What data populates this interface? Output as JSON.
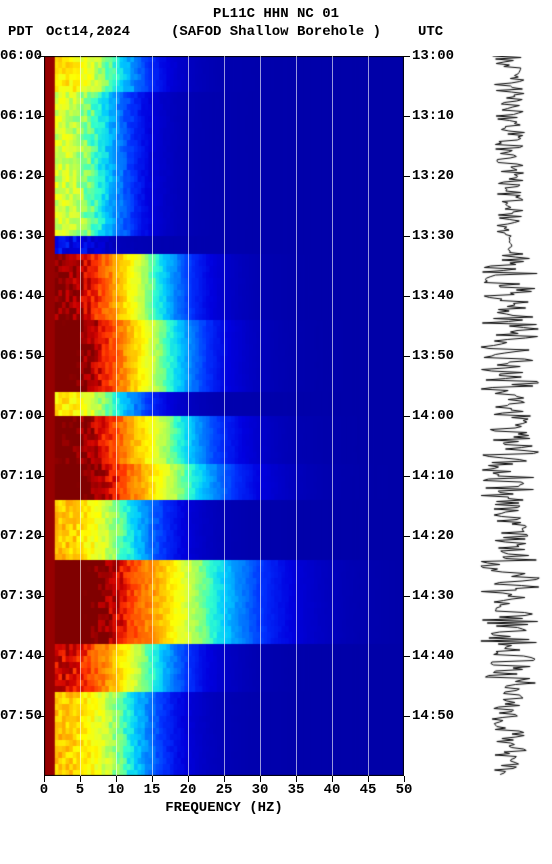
{
  "header": {
    "title": "PL11C HHN NC 01",
    "tz_left": "PDT",
    "date": "Oct14,2024",
    "subtitle": "(SAFOD Shallow Borehole )",
    "tz_right": "UTC",
    "title_fontsize": 14,
    "font_family": "Courier New"
  },
  "spectrogram": {
    "type": "spectrogram",
    "xlabel": "FREQUENCY (HZ)",
    "xlim": [
      0,
      50
    ],
    "xticks": [
      0,
      5,
      10,
      15,
      20,
      25,
      30,
      35,
      40,
      45,
      50
    ],
    "left_ticks": [
      "06:00",
      "06:10",
      "06:20",
      "06:30",
      "06:40",
      "06:50",
      "07:00",
      "07:10",
      "07:20",
      "07:30",
      "07:40",
      "07:50"
    ],
    "right_ticks": [
      "13:00",
      "13:10",
      "13:20",
      "13:30",
      "13:40",
      "13:50",
      "14:00",
      "14:10",
      "14:20",
      "14:30",
      "14:40",
      "14:50"
    ],
    "n_time_rows": 120,
    "ytick_step_minutes": 10,
    "grid_xvals": [
      5,
      10,
      15,
      20,
      25,
      30,
      35,
      40,
      45
    ],
    "grid_color": "#ffffff",
    "background_color": "#000099",
    "left_edge_color": "#800000",
    "colormap": [
      "#00008b",
      "#0000b3",
      "#0000e0",
      "#0033ff",
      "#0080ff",
      "#00ccff",
      "#33ffcc",
      "#99ff66",
      "#e0ff33",
      "#ffff00",
      "#ffcc00",
      "#ff9900",
      "#ff6600",
      "#ff3300",
      "#cc0000",
      "#800000"
    ],
    "events": [
      {
        "t0": 0,
        "t1": 6,
        "freq0": 0,
        "freq1": 12,
        "intensity": 0.55
      },
      {
        "t0": 6,
        "t1": 30,
        "freq0": 0,
        "freq1": 10,
        "intensity": 0.45
      },
      {
        "t0": 33,
        "t1": 44,
        "freq0": 0,
        "freq1": 16,
        "intensity": 0.92
      },
      {
        "t0": 44,
        "t1": 56,
        "freq0": 0,
        "freq1": 18,
        "intensity": 0.98
      },
      {
        "t0": 55,
        "t1": 60,
        "freq0": 0,
        "freq1": 12,
        "intensity": 0.55
      },
      {
        "t0": 60,
        "t1": 68,
        "freq0": 0,
        "freq1": 20,
        "intensity": 0.96
      },
      {
        "t0": 66,
        "t1": 74,
        "freq0": 0,
        "freq1": 22,
        "intensity": 0.99
      },
      {
        "t0": 74,
        "t1": 84,
        "freq0": 0,
        "freq1": 14,
        "intensity": 0.6
      },
      {
        "t0": 84,
        "t1": 98,
        "freq0": 0,
        "freq1": 26,
        "intensity": 1.0
      },
      {
        "t0": 98,
        "t1": 106,
        "freq0": 0,
        "freq1": 16,
        "intensity": 0.85
      },
      {
        "t0": 106,
        "t1": 120,
        "freq0": 0,
        "freq1": 14,
        "intensity": 0.6
      }
    ],
    "axis_color": "#000000",
    "label_fontsize": 14
  },
  "waveform": {
    "type": "waveform",
    "color": "#000000",
    "background_color": "#ffffff",
    "baseline_width": 1,
    "amplitude_max": 28,
    "envelope_source": "events"
  }
}
